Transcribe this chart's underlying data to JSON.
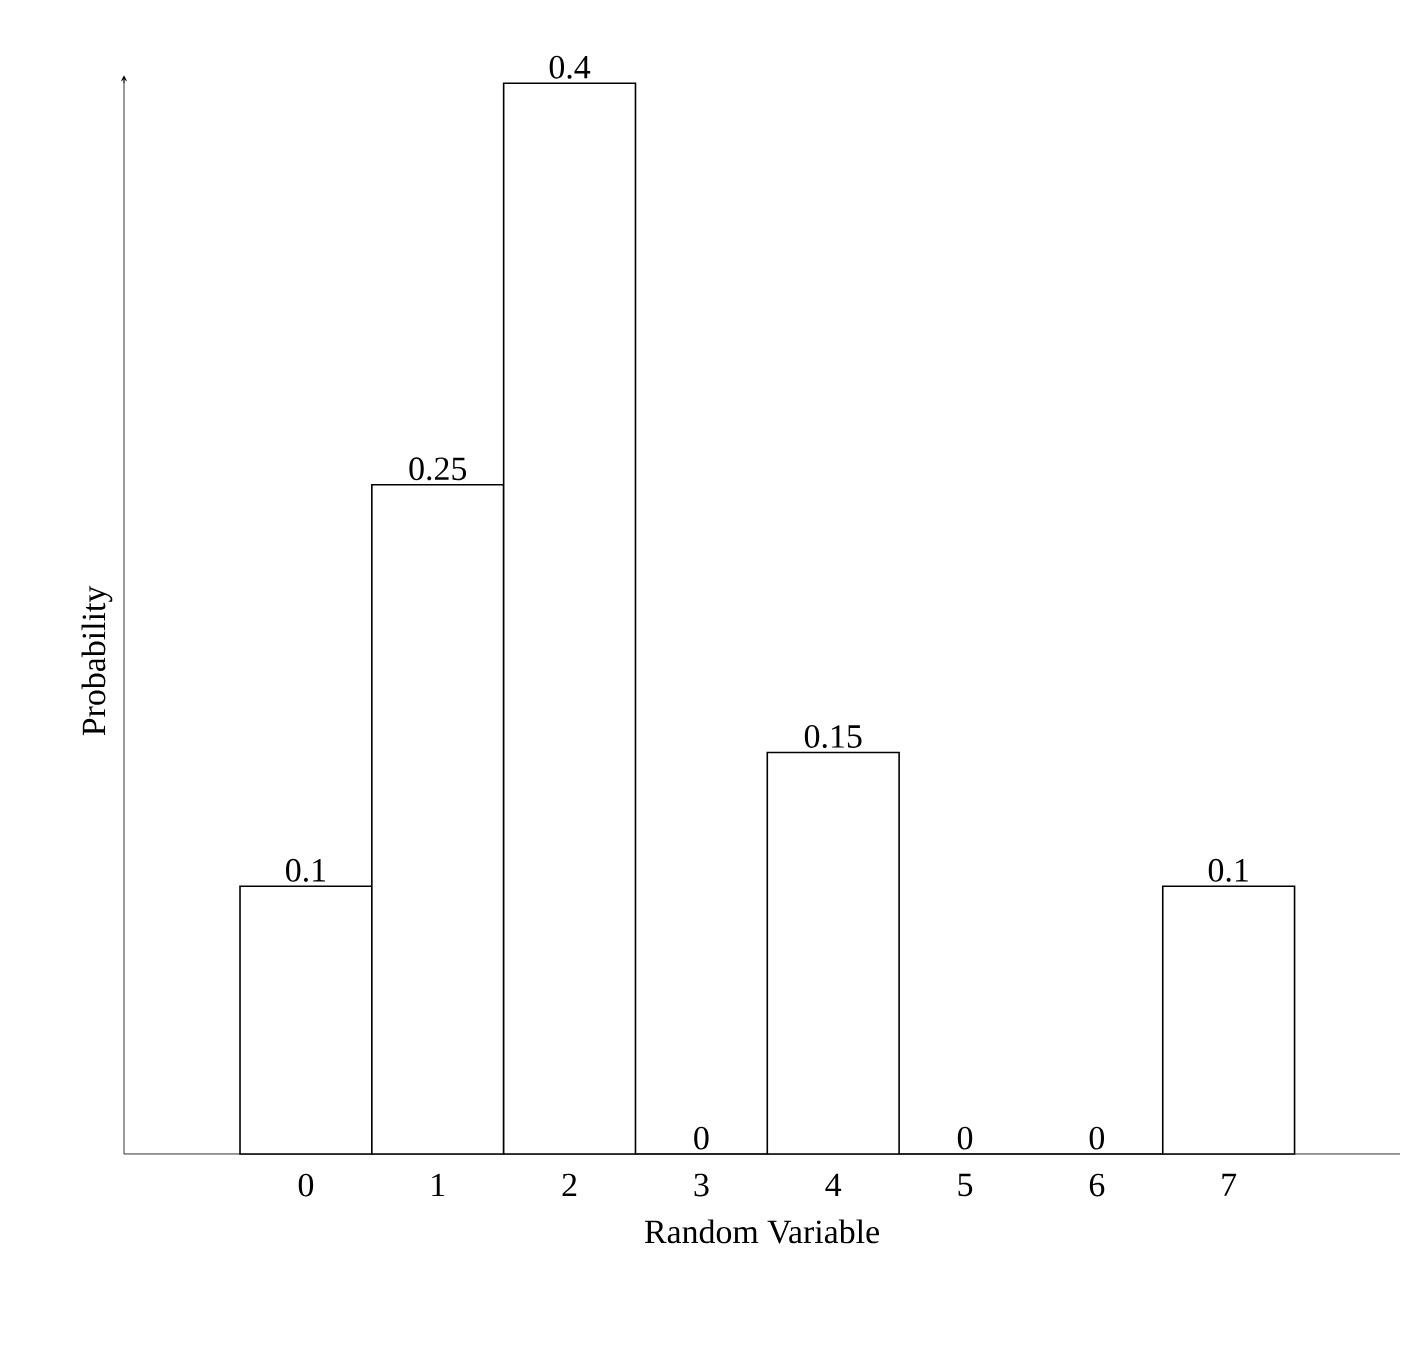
{
  "chart_data": {
    "type": "bar",
    "xlabel": "Random Variable",
    "ylabel": "Probability",
    "categories": [
      "0",
      "1",
      "2",
      "3",
      "4",
      "5",
      "6",
      "7"
    ],
    "values": [
      0.1,
      0.25,
      0.4,
      0,
      0.15,
      0,
      0,
      0.1
    ],
    "data_labels": true,
    "tick_labels": "x",
    "grid": false
  }
}
